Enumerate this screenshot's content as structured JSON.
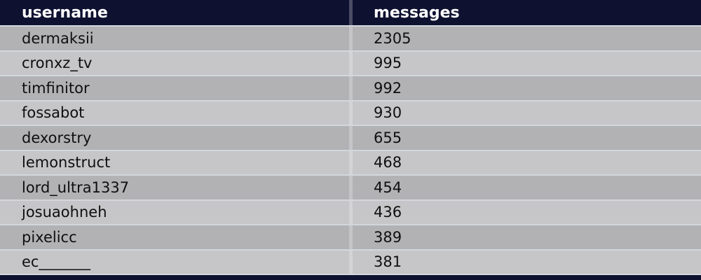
{
  "table": {
    "columns": [
      {
        "key": "username",
        "label": "username"
      },
      {
        "key": "messages",
        "label": "messages"
      }
    ],
    "rows": [
      {
        "username": "dermaksii",
        "messages": "2305"
      },
      {
        "username": "cronxz_tv",
        "messages": "995"
      },
      {
        "username": "timfinitor",
        "messages": "992"
      },
      {
        "username": "fossabot",
        "messages": "930"
      },
      {
        "username": "dexorstry",
        "messages": "655"
      },
      {
        "username": "lemonstruct",
        "messages": "468"
      },
      {
        "username": "lord_ultra1337",
        "messages": "454"
      },
      {
        "username": "josuaohneh",
        "messages": "436"
      },
      {
        "username": "pixelicc",
        "messages": "389"
      },
      {
        "username": "ec_______",
        "messages": "381"
      }
    ]
  },
  "colors": {
    "header_bg": "#0e1130",
    "header_text": "#ffffff",
    "row_dark": "#b2b2b4",
    "row_light": "#c6c6c8",
    "row_separator": "#d3d7dc",
    "cell_text": "#0f0f0f",
    "bottom_bar": "#0e1130"
  }
}
